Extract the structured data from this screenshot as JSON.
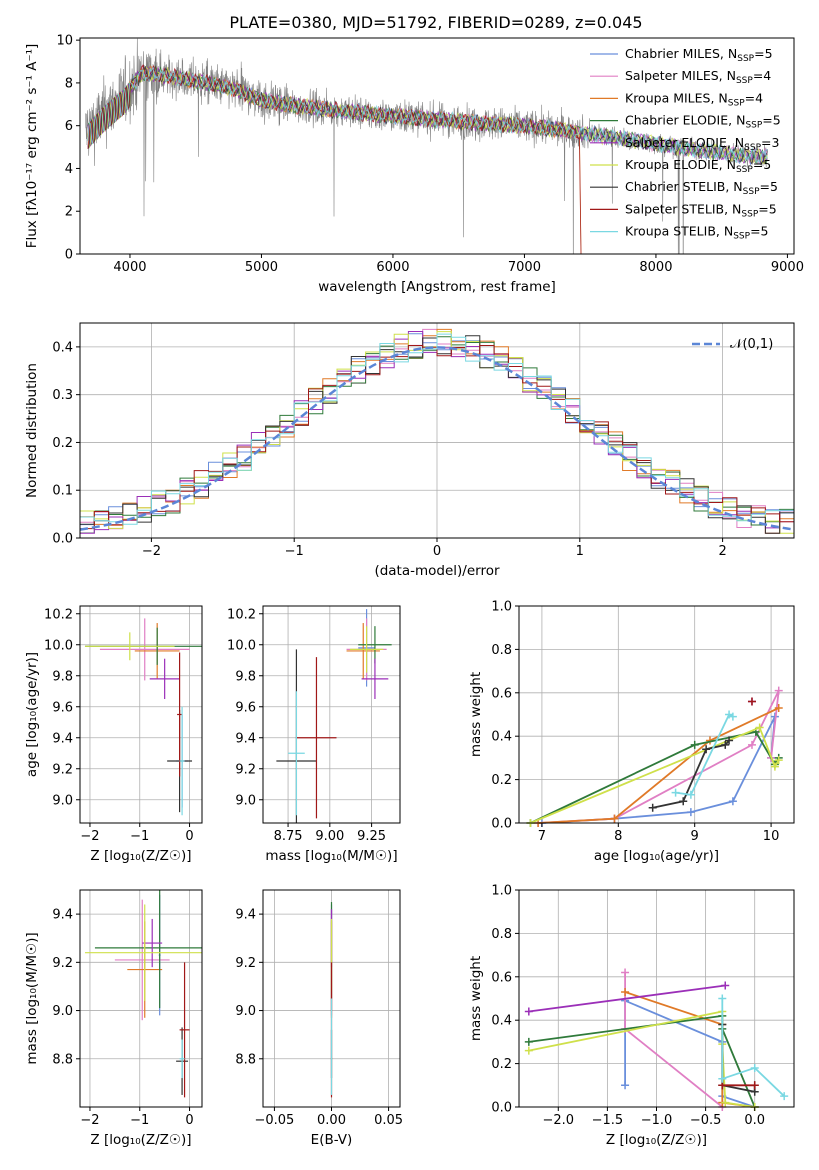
{
  "figure_title": "PLATE=0380, MJD=51792, FIBERID=0289, z=0.045",
  "models": [
    {
      "name": "Chabrier MILES",
      "nssp": "5",
      "color": "#6a8fdc"
    },
    {
      "name": "Salpeter MILES",
      "nssp": "4",
      "color": "#e07fc4"
    },
    {
      "name": "Kroupa MILES",
      "nssp": "4",
      "color": "#e07a28"
    },
    {
      "name": "Chabrier ELODIE",
      "nssp": "5",
      "color": "#2f7a3a"
    },
    {
      "name": "Salpeter ELODIE",
      "nssp": "3",
      "color": "#9b2fb8"
    },
    {
      "name": "Kroupa ELODIE",
      "nssp": "5",
      "color": "#cfe04a"
    },
    {
      "name": "Chabrier STELIB",
      "nssp": "5",
      "color": "#333333"
    },
    {
      "name": "Salpeter STELIB",
      "nssp": "5",
      "color": "#a01818"
    },
    {
      "name": "Kroupa STELIB",
      "nssp": "5",
      "color": "#7ad8e2"
    }
  ],
  "chart_data": [
    {
      "id": "spectrum",
      "type": "line",
      "xlabel": "wavelength [Angstrom, rest frame]",
      "ylabel": "Flux [fλ10⁻¹⁷ erg cm⁻² s⁻¹ A⁻¹]",
      "xlim": [
        3620,
        9050
      ],
      "ylim": [
        0,
        10.1
      ],
      "xticks": [
        4000,
        5000,
        6000,
        7000,
        8000,
        9000
      ],
      "yticks": [
        0,
        2,
        4,
        6,
        8,
        10
      ],
      "data_color": "#808080",
      "continuum": {
        "x": [
          3680,
          3800,
          3950,
          4100,
          4300,
          4500,
          4800,
          5000,
          5300,
          5600,
          6000,
          6500,
          7000,
          7400,
          7800,
          8200,
          8600,
          8800
        ],
        "y": [
          5.8,
          6.6,
          7.4,
          8.5,
          8.3,
          8.1,
          7.7,
          7.2,
          6.9,
          6.7,
          6.45,
          6.2,
          6.0,
          5.7,
          5.35,
          4.95,
          4.65,
          4.55
        ]
      },
      "legend_position": "top-right",
      "grid": false
    },
    {
      "id": "residual_hist",
      "type": "histogram",
      "xlabel": "(data-model)/error",
      "ylabel": "Normed distribution",
      "xlim": [
        -2.5,
        2.5
      ],
      "ylim": [
        0,
        0.45
      ],
      "xticks": [
        -2,
        -1,
        0,
        1,
        2
      ],
      "yticks": [
        0.0,
        0.1,
        0.2,
        0.3,
        0.4
      ],
      "bin_width": 0.1,
      "reference": {
        "label": "𝒩(0,1)",
        "color": "#5b86d6",
        "mean": 0,
        "sigma": 1
      },
      "legend_position": "top-right",
      "grid": true
    },
    {
      "id": "age_vs_Z",
      "type": "errorbar",
      "xlabel": "Z [log₁₀(Z/Z☉)]",
      "ylabel": "age  [log₁₀(age/yr)]",
      "xlim": [
        -2.2,
        0.25
      ],
      "ylim": [
        8.85,
        10.25
      ],
      "xticks": [
        -2,
        -1,
        0
      ],
      "yticks": [
        9.0,
        9.2,
        9.4,
        9.6,
        9.8,
        10.0,
        10.2
      ],
      "grid": true,
      "points": [
        {
          "m": 0,
          "x": -0.15,
          "y": 9.25,
          "xerr": 0.12,
          "yerr": 0.3
        },
        {
          "m": 1,
          "x": -0.9,
          "y": 9.97,
          "xerr": 0.9,
          "yerr": 0.2
        },
        {
          "m": 2,
          "x": -0.65,
          "y": 9.96,
          "xerr": 0.45,
          "yerr": 0.18
        },
        {
          "m": 3,
          "x": -0.65,
          "y": 9.99,
          "xerr": 1.45,
          "yerr": 0.12
        },
        {
          "m": 4,
          "x": -0.5,
          "y": 9.78,
          "xerr": 0.3,
          "yerr": 0.13
        },
        {
          "m": 5,
          "x": -1.2,
          "y": 9.99,
          "xerr": 0.9,
          "yerr": 0.09
        },
        {
          "m": 6,
          "x": -0.2,
          "y": 9.25,
          "xerr": 0.25,
          "yerr": 0.33
        },
        {
          "m": 7,
          "x": -0.2,
          "y": 9.55,
          "xerr": 0.05,
          "yerr": 0.4
        },
        {
          "m": 8,
          "x": -0.15,
          "y": 9.25,
          "xerr": 0.05,
          "yerr": 0.35
        }
      ]
    },
    {
      "id": "age_vs_mass",
      "type": "errorbar",
      "xlabel": "mass [log₁₀(M/M☉)]",
      "ylabel": "",
      "xlim": [
        8.6,
        9.42
      ],
      "ylim": [
        8.85,
        10.25
      ],
      "xticks": [
        8.75,
        9.0,
        9.25
      ],
      "yticks": [
        9.0,
        9.2,
        9.4,
        9.6,
        9.8,
        10.0,
        10.2
      ],
      "grid": true,
      "points": [
        {
          "m": 0,
          "x": 9.22,
          "y": 9.98,
          "xerr": 0.05,
          "yerr": 0.25
        },
        {
          "m": 1,
          "x": 9.22,
          "y": 9.97,
          "xerr": 0.12,
          "yerr": 0.2
        },
        {
          "m": 2,
          "x": 9.2,
          "y": 9.96,
          "xerr": 0.1,
          "yerr": 0.18
        },
        {
          "m": 3,
          "x": 9.27,
          "y": 10.0,
          "xerr": 0.1,
          "yerr": 0.12
        },
        {
          "m": 4,
          "x": 9.27,
          "y": 9.78,
          "xerr": 0.08,
          "yerr": 0.13
        },
        {
          "m": 5,
          "x": 9.22,
          "y": 9.97,
          "xerr": 0.1,
          "yerr": 0.15
        },
        {
          "m": 6,
          "x": 8.8,
          "y": 9.25,
          "xerr": 0.12,
          "yerr": 0.72
        },
        {
          "m": 7,
          "x": 8.92,
          "y": 9.4,
          "xerr": 0.12,
          "yerr": 0.52
        },
        {
          "m": 8,
          "x": 8.8,
          "y": 9.3,
          "xerr": 0.05,
          "yerr": 0.4
        }
      ]
    },
    {
      "id": "massweight_vs_age",
      "type": "line",
      "xlabel": "age  [log₁₀(age/yr)]",
      "ylabel": "mass weight",
      "xlim": [
        6.7,
        10.3
      ],
      "ylim": [
        0,
        1.0
      ],
      "xticks": [
        7,
        8,
        9,
        10
      ],
      "yticks": [
        0.0,
        0.2,
        0.4,
        0.6,
        0.8,
        1.0
      ],
      "grid": true,
      "series": [
        {
          "m": 0,
          "x": [
            7.0,
            7.95,
            8.95,
            9.5,
            10.05,
            10.0
          ],
          "y": [
            0.0,
            0.02,
            0.05,
            0.1,
            0.49,
            0.3
          ]
        },
        {
          "m": 1,
          "x": [
            6.95,
            7.95,
            9.75,
            10.1,
            10.0
          ],
          "y": [
            0.0,
            0.02,
            0.36,
            0.61,
            0.3
          ]
        },
        {
          "m": 2,
          "x": [
            6.95,
            7.95,
            9.2,
            10.1
          ],
          "y": [
            0.0,
            0.02,
            0.38,
            0.53
          ]
        },
        {
          "m": 3,
          "x": [
            6.85,
            9.0,
            9.8,
            10.05,
            10.1
          ],
          "y": [
            0.0,
            0.36,
            0.42,
            0.27,
            0.3
          ]
        },
        {
          "m": 4,
          "x": [
            9.75
          ],
          "y": [
            0.56
          ]
        },
        {
          "m": 5,
          "x": [
            6.85,
            9.85,
            10.05,
            10.1
          ],
          "y": [
            0.0,
            0.44,
            0.26,
            0.29
          ]
        },
        {
          "m": 6,
          "x": [
            8.45,
            8.85,
            9.15,
            9.4,
            9.45
          ],
          "y": [
            0.07,
            0.1,
            0.34,
            0.36,
            0.38
          ]
        },
        {
          "m": 7,
          "x": [
            9.75
          ],
          "y": [
            0.56
          ]
        },
        {
          "m": 8,
          "x": [
            8.75,
            8.95,
            9.45,
            9.5
          ],
          "y": [
            0.14,
            0.13,
            0.5,
            0.49
          ]
        }
      ]
    },
    {
      "id": "mass_vs_Z",
      "type": "errorbar",
      "xlabel": "Z [log₁₀(Z/Z☉)]",
      "ylabel": "mass [log₁₀(M/M☉)]",
      "xlim": [
        -2.2,
        0.25
      ],
      "ylim": [
        8.6,
        9.5
      ],
      "xticks": [
        -2,
        -1,
        0
      ],
      "yticks": [
        8.8,
        9.0,
        9.2,
        9.4
      ],
      "grid": true,
      "points": [
        {
          "m": 0,
          "x": -0.6,
          "y": 9.23,
          "xerr": 0.02,
          "yerr": 0.25
        },
        {
          "m": 1,
          "x": -0.95,
          "y": 9.21,
          "xerr": 0.55,
          "yerr": 0.25
        },
        {
          "m": 2,
          "x": -0.9,
          "y": 9.17,
          "xerr": 0.35,
          "yerr": 0.2
        },
        {
          "m": 3,
          "x": -0.6,
          "y": 9.26,
          "xerr": 1.3,
          "yerr": 0.25
        },
        {
          "m": 4,
          "x": -0.75,
          "y": 9.28,
          "xerr": 0.2,
          "yerr": 0.1
        },
        {
          "m": 5,
          "x": -0.9,
          "y": 9.24,
          "xerr": 1.2,
          "yerr": 0.2
        },
        {
          "m": 6,
          "x": -0.15,
          "y": 8.79,
          "xerr": 0.12,
          "yerr": 0.14
        },
        {
          "m": 7,
          "x": -0.1,
          "y": 8.92,
          "xerr": 0.1,
          "yerr": 0.28
        },
        {
          "m": 8,
          "x": -0.15,
          "y": 8.8,
          "xerr": 0.05,
          "yerr": 0.08
        }
      ]
    },
    {
      "id": "mass_vs_EBV",
      "type": "errorbar",
      "xlabel": "E(B-V)",
      "ylabel": "",
      "xlim": [
        -0.06,
        0.06
      ],
      "ylim": [
        8.6,
        9.5
      ],
      "xticks": [
        -0.05,
        0.0,
        0.05
      ],
      "yticks": [
        8.8,
        9.0,
        9.2,
        9.4
      ],
      "grid": true,
      "points": [
        {
          "m": 0,
          "x": 0,
          "y": 9.22,
          "xerr": 0,
          "yerr": 0.22
        },
        {
          "m": 1,
          "x": 0,
          "y": 9.2,
          "xerr": 0,
          "yerr": 0.22
        },
        {
          "m": 2,
          "x": 0,
          "y": 9.17,
          "xerr": 0,
          "yerr": 0.2
        },
        {
          "m": 3,
          "x": 0,
          "y": 9.25,
          "xerr": 0,
          "yerr": 0.2
        },
        {
          "m": 4,
          "x": 0,
          "y": 9.3,
          "xerr": 0,
          "yerr": 0.12
        },
        {
          "m": 5,
          "x": 0,
          "y": 9.23,
          "xerr": 0,
          "yerr": 0.15
        },
        {
          "m": 6,
          "x": 0,
          "y": 8.82,
          "xerr": 0,
          "yerr": 0.1
        },
        {
          "m": 7,
          "x": 0,
          "y": 8.92,
          "xerr": 0,
          "yerr": 0.28
        },
        {
          "m": 8,
          "x": 0,
          "y": 8.85,
          "xerr": 0,
          "yerr": 0.2
        }
      ]
    },
    {
      "id": "massweight_vs_Z",
      "type": "line",
      "xlabel": "Z [log₁₀(Z/Z☉)]",
      "ylabel": "mass weight",
      "xlim": [
        -2.4,
        0.4
      ],
      "ylim": [
        0,
        1.0
      ],
      "xticks": [
        -2.0,
        -1.5,
        -1.0,
        -0.5,
        0.0
      ],
      "yticks": [
        0.0,
        0.2,
        0.4,
        0.6,
        0.8,
        1.0
      ],
      "grid": true,
      "series": [
        {
          "m": 0,
          "x": [
            -1.32,
            -1.32,
            -0.33,
            -0.33,
            0.0
          ],
          "y": [
            0.1,
            0.49,
            0.3,
            0.05,
            0.0
          ]
        },
        {
          "m": 1,
          "x": [
            -1.32,
            -1.32,
            -0.33,
            -0.33
          ],
          "y": [
            0.62,
            0.36,
            0.0,
            0.02
          ]
        },
        {
          "m": 2,
          "x": [
            -1.32,
            -0.33,
            -0.33,
            0.0
          ],
          "y": [
            0.53,
            0.38,
            0.02,
            0.0
          ]
        },
        {
          "m": 3,
          "x": [
            -2.3,
            -0.33,
            -0.33,
            0.0
          ],
          "y": [
            0.3,
            0.42,
            0.36,
            0.0
          ]
        },
        {
          "m": 4,
          "x": [
            -2.3,
            -0.3
          ],
          "y": [
            0.44,
            0.56
          ]
        },
        {
          "m": 5,
          "x": [
            -2.3,
            -0.33,
            -0.33,
            -0.3,
            0.0
          ],
          "y": [
            0.26,
            0.44,
            0.29,
            0.02,
            0.0
          ]
        },
        {
          "m": 6,
          "x": [
            -0.33,
            -0.33,
            0.0,
            0.0
          ],
          "y": [
            0.38,
            0.1,
            0.07,
            0.1
          ]
        },
        {
          "m": 7,
          "x": [
            -0.33,
            0.0
          ],
          "y": [
            0.1,
            0.1
          ]
        },
        {
          "m": 8,
          "x": [
            -0.33,
            -0.33,
            0.0,
            0.3
          ],
          "y": [
            0.5,
            0.13,
            0.18,
            0.05
          ]
        }
      ]
    }
  ]
}
